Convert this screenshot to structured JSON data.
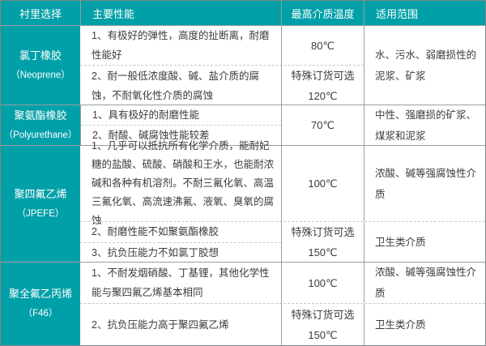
{
  "colors": {
    "accent_teal": "#00a0a8",
    "header_text": "#ffffff",
    "body_text": "#3c3c3c",
    "grid_border": "#9a9fa0",
    "dashed_divider": "#c6c9ca"
  },
  "table": {
    "headers": [
      "衬里选择",
      "主要性能",
      "最高介质温度",
      "适用范围"
    ],
    "rows": [
      {
        "material_name": "氯丁橡胶",
        "material_code": "（Neoprene）",
        "sub1_perf": "1、有极好的弹性，高度的扯断离，耐磨性能好",
        "sub1_temp": "80℃",
        "sub2_perf": "2、耐一般低浓度酸、碱、盐介质的腐蚀，不耐氧化性介质的腐蚀",
        "sub2_temp_line1": "特殊订货可选",
        "sub2_temp_line2": "120℃",
        "scope": "水、污水、弱磨损性的泥浆、矿浆"
      },
      {
        "material_name": "聚氨酯橡胶",
        "material_code": "（Polyurethane）",
        "perf1": "1、具有极好的耐磨性能",
        "perf2": "2、耐酸、碱腐蚀性能较差",
        "temp": "70℃",
        "scope": "中性、强磨损的矿浆、煤浆和泥浆"
      },
      {
        "material_name": "聚四氟乙烯",
        "material_code": "（JPEFE）",
        "sub1_perf": "1、几乎可以抵抗所有化学介质，能耐妃糖的盐酸、硫酸、硝酸和王水，也能耐浓碱和各种有机溶剂。不耐三氟化氧、高温三氟化氧、高流速沸氟、液氧、臭氧的腐蚀",
        "sub1_temp": "100℃",
        "sub1_scope": "浓酸、碱等强腐蚀性介质",
        "sub2_perf_a": "2、耐磨性能不如聚氨酯橡胶",
        "sub2_perf_b": "3、抗负压能力不如氯丁胶想",
        "sub2_temp_line1": "特殊订货可选",
        "sub2_temp_line2": "150℃",
        "sub2_scope": "卫生类介质"
      },
      {
        "material_name": "聚全氟乙丙烯",
        "material_code": "（F46）",
        "sub1_perf": "1、不耐发烟硝酸、丁基锂，其他化学性能与聚四氟乙烯基本相同",
        "sub1_temp": "100℃",
        "sub1_scope": "浓酸、碱等强腐蚀性介质",
        "sub2_perf": "2、抗负压能力高于聚四氟乙烯",
        "sub2_temp_line1": "特殊订货可选",
        "sub2_temp_line2": "150℃",
        "sub2_scope": "卫生类介质"
      }
    ]
  }
}
